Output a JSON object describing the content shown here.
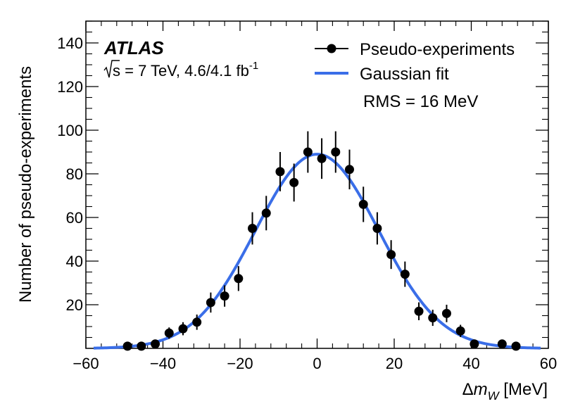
{
  "chart_data": {
    "type": "scatter",
    "experiment_label": "ATLAS",
    "energy_label": {
      "sqrt_symbol": "√",
      "main": "s = 7 TeV, 4.6/4.1 fb",
      "superscript": "-1"
    },
    "xlabel": {
      "delta": "Δ",
      "m": "m",
      "sub": "W",
      "unit": " [MeV]"
    },
    "ylabel": "Number of pseudo-experiments",
    "xlim": [
      -60,
      60
    ],
    "ylim": [
      0,
      150
    ],
    "x_ticks": [
      -60,
      -40,
      -20,
      0,
      20,
      40,
      60
    ],
    "x_tick_labels": [
      "−60",
      "−40",
      "−20",
      "0",
      "20",
      "40",
      "60"
    ],
    "y_ticks": [
      20,
      40,
      60,
      80,
      100,
      120,
      140
    ],
    "y_tick_labels": [
      "20",
      "40",
      "60",
      "80",
      "100",
      "120",
      "140"
    ],
    "legend": {
      "position": "top-right",
      "entries": [
        "Pseudo-experiments",
        "Gaussian fit"
      ],
      "note": "RMS = 16 MeV"
    },
    "series": [
      {
        "name": "Pseudo-experiments",
        "style": "points-with-errors",
        "color": "#000000",
        "x": [
          -49.2,
          -45.6,
          -42,
          -38.4,
          -34.8,
          -31.2,
          -27.6,
          -24,
          -20.4,
          -16.8,
          -13.2,
          -9.6,
          -6,
          -2.4,
          1.2,
          4.8,
          8.4,
          12,
          15.6,
          19.2,
          22.8,
          26.4,
          30,
          33.6,
          37.2,
          40.8,
          48,
          51.6
        ],
        "y": [
          1,
          1,
          2,
          7,
          9,
          12,
          21,
          24,
          32,
          55,
          62,
          81,
          76,
          90,
          87,
          90,
          82,
          66,
          55,
          43,
          34,
          17,
          14,
          16,
          8,
          2,
          2,
          1
        ],
        "yerr": [
          1,
          1,
          1.4,
          2.6,
          3,
          3.5,
          4.6,
          4.9,
          5.7,
          7.4,
          7.9,
          9,
          8.7,
          9.5,
          9.3,
          9.5,
          9.1,
          8.1,
          7.4,
          6.6,
          5.8,
          4.1,
          3.7,
          4,
          2.8,
          1.4,
          1.4,
          1
        ]
      },
      {
        "name": "Gaussian fit",
        "style": "line",
        "color": "#3a6ee8",
        "function": "gaussian",
        "amplitude": 89,
        "mean": 0,
        "sigma": 16,
        "x_range": [
          -58,
          58
        ]
      }
    ]
  }
}
